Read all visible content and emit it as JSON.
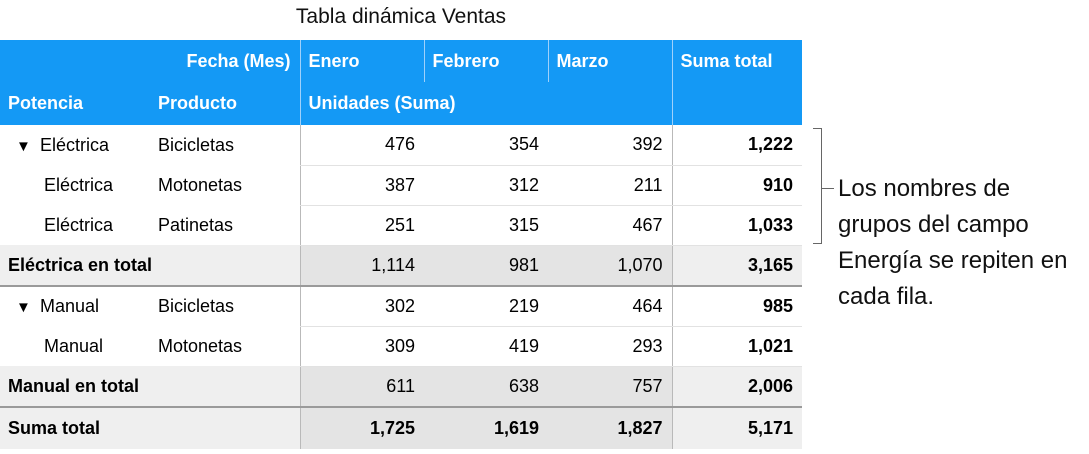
{
  "title": "Tabla dinámica Ventas",
  "header": {
    "fecha_label": "Fecha  (Mes)",
    "months": [
      "Enero",
      "Febrero",
      "Marzo"
    ],
    "suma_total": "Suma total",
    "potencia": "Potencia",
    "producto": "Producto",
    "unidades": "Unidades  (Suma)"
  },
  "rows": [
    {
      "group": "Eléctrica",
      "product": "Bicicletas",
      "values": [
        "476",
        "354",
        "392"
      ],
      "total": "1,222"
    },
    {
      "group": "Eléctrica",
      "product": "Motonetas",
      "values": [
        "387",
        "312",
        "211"
      ],
      "total": "910"
    },
    {
      "group": "Eléctrica",
      "product": "Patinetas",
      "values": [
        "251",
        "315",
        "467"
      ],
      "total": "1,033"
    },
    {
      "group": "Manual",
      "product": "Bicicletas",
      "values": [
        "302",
        "219",
        "464"
      ],
      "total": "985"
    },
    {
      "group": "Manual",
      "product": "Motonetas",
      "values": [
        "309",
        "419",
        "293"
      ],
      "total": "1,021"
    }
  ],
  "subtotals": [
    {
      "label": "Eléctrica en total",
      "values": [
        "1,114",
        "981",
        "1,070"
      ],
      "total": "3,165"
    },
    {
      "label": "Manual en total",
      "values": [
        "611",
        "638",
        "757"
      ],
      "total": "2,006"
    }
  ],
  "grand": {
    "label": "Suma total",
    "values": [
      "1,725",
      "1,619",
      "1,827"
    ],
    "total": "5,171"
  },
  "disclosure_glyph": "▼",
  "annotation": "Los nombres de grupos del campo Energía se repiten en cada fila."
}
